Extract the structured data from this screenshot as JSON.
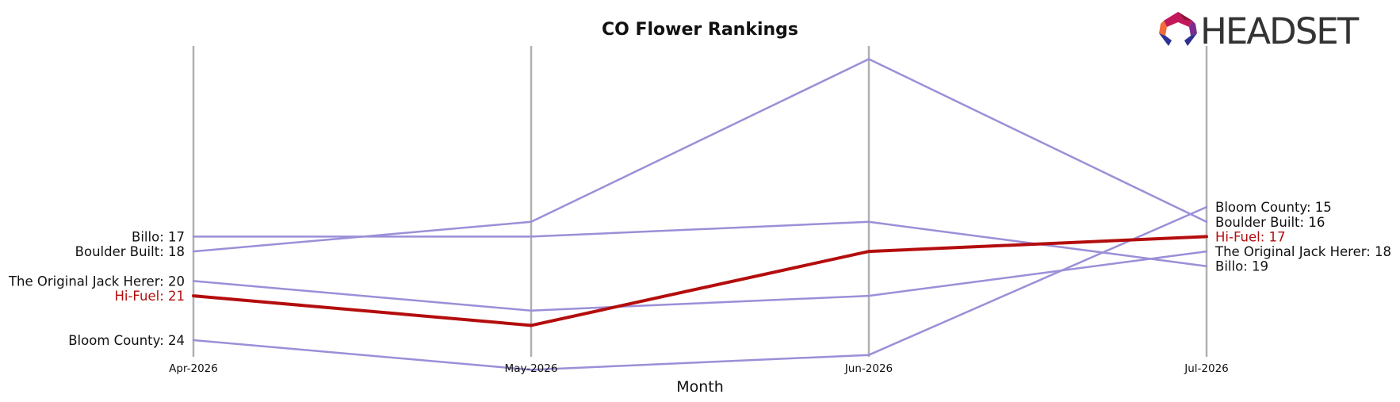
{
  "chart_data": {
    "type": "line",
    "title": "CO Flower Rankings",
    "xlabel": "Month",
    "ylabel": "",
    "x": [
      "Apr-2026",
      "May-2026",
      "Jun-2026",
      "Jul-2026"
    ],
    "y_inverted": true,
    "ylim": [
      5,
      26
    ],
    "grid": "vertical month lines only",
    "legend": "none; series labeled at left and right ends",
    "series": [
      {
        "name": "Billo",
        "values": [
          17,
          17,
          16,
          19
        ],
        "color": "#9b8fd8",
        "highlight": false
      },
      {
        "name": "Boulder Built",
        "values": [
          18,
          16,
          5,
          16
        ],
        "color": "#9b8fd8",
        "highlight": false
      },
      {
        "name": "The Original Jack Herer",
        "values": [
          20,
          22,
          21,
          18
        ],
        "color": "#9b8fd8",
        "highlight": false
      },
      {
        "name": "Bloom County",
        "values": [
          24,
          26,
          25,
          15
        ],
        "color": "#9b8fd8",
        "highlight": false
      },
      {
        "name": "Hi-Fuel",
        "values": [
          21,
          23,
          18,
          17
        ],
        "color": "#b40d0d",
        "highlight": true
      }
    ],
    "left_labels": [
      {
        "text": "Billo: 17",
        "series": "Billo"
      },
      {
        "text": "Boulder Built: 18",
        "series": "Boulder Built"
      },
      {
        "text": "The Original Jack Herer: 20",
        "series": "The Original Jack Herer"
      },
      {
        "text": "Hi-Fuel: 21",
        "series": "Hi-Fuel"
      },
      {
        "text": "Bloom County: 24",
        "series": "Bloom County"
      }
    ],
    "right_labels": [
      {
        "text": "Bloom County: 15",
        "series": "Bloom County"
      },
      {
        "text": "Boulder Built: 16",
        "series": "Boulder Built"
      },
      {
        "text": "Hi-Fuel: 17",
        "series": "Hi-Fuel"
      },
      {
        "text": "The Original Jack Herer: 18",
        "series": "The Original Jack Herer"
      },
      {
        "text": "Billo: 19",
        "series": "Billo"
      }
    ]
  },
  "logo": {
    "text": "HEADSET",
    "colors": [
      "#c2185b",
      "#8e1538",
      "#f26b3a",
      "#7b2d8e",
      "#2e3192"
    ]
  },
  "colors": {
    "gridline": "#b0b0b0",
    "series_default": "#9b8fd8",
    "highlight": "#b40d0d",
    "text": "#111111"
  }
}
